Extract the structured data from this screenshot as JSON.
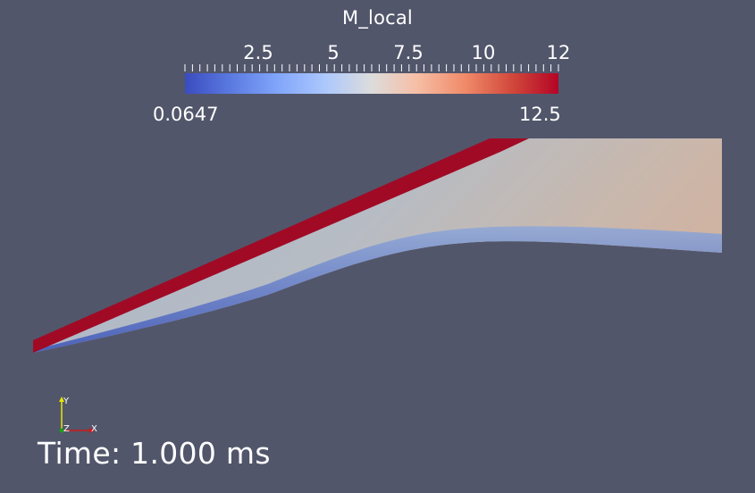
{
  "scalar_bar": {
    "title": "M_local",
    "tick_labels": [
      "2.5",
      "5",
      "7.5",
      "10",
      "12"
    ],
    "range_min": "0.0647",
    "range_max": "12.5",
    "colormap": [
      "#3b4cc0",
      "#5a79e0",
      "#82a6fb",
      "#aec9fc",
      "#dddcdc",
      "#f6bfa6",
      "#f08a69",
      "#d0463a",
      "#b40426"
    ]
  },
  "annotation": {
    "time_text": "Time: 1.000 ms"
  },
  "axes": {
    "x_label": "X",
    "y_label": "Y",
    "z_label": "Z"
  },
  "colors": {
    "background": "#52566b",
    "shock_layer": "#a10a25",
    "flow_core": "#a3b3c8",
    "boundary_layer": "#3f56b8"
  }
}
